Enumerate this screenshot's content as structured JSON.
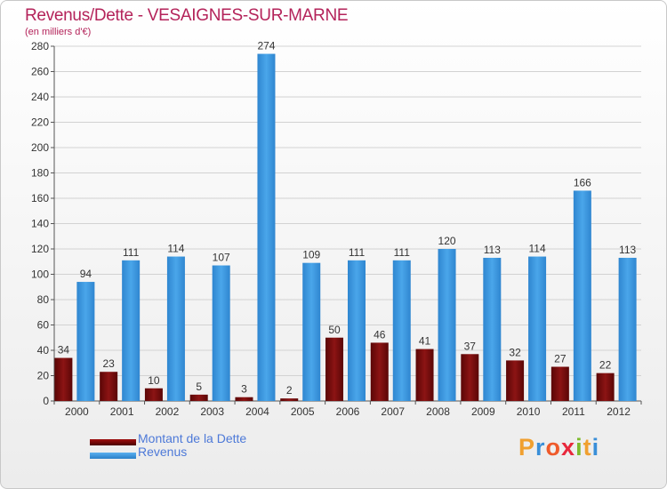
{
  "chart_data": {
    "type": "bar",
    "title": "Revenus/Dette - VESAIGNES-SUR-MARNE",
    "subtitle": "(en milliers d'€)",
    "categories": [
      "2000",
      "2001",
      "2002",
      "2003",
      "2004",
      "2005",
      "2006",
      "2007",
      "2008",
      "2009",
      "2010",
      "2011",
      "2012"
    ],
    "series": [
      {
        "name": "Montant de la Dette",
        "color": "#7a0c0c",
        "values": [
          34,
          23,
          10,
          5,
          3,
          2,
          50,
          46,
          41,
          37,
          32,
          27,
          22
        ]
      },
      {
        "name": "Revenus",
        "color": "#3a95dc",
        "values": [
          94,
          111,
          114,
          107,
          274,
          109,
          111,
          111,
          120,
          113,
          114,
          166,
          113
        ]
      }
    ],
    "ylim": [
      0,
      280
    ],
    "yticks": [
      0,
      20,
      40,
      60,
      80,
      100,
      120,
      140,
      160,
      180,
      200,
      220,
      240,
      260,
      280
    ],
    "grid": true,
    "legend_position": "bottom-left"
  },
  "logo": {
    "text": "Proxiti",
    "colors": [
      "#f0a030",
      "#3a8fd8",
      "#ef5a2a",
      "#e8283c",
      "#7dbb2d",
      "#f0a030",
      "#3a8fd8"
    ]
  }
}
